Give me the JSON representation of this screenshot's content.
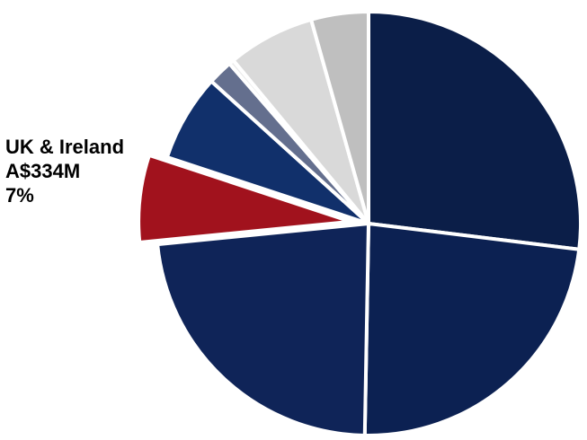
{
  "chart_data": {
    "type": "pie",
    "title": "",
    "start_angle_deg": 0,
    "direction": "clockwise",
    "slices": [
      {
        "value": 28.4,
        "color": "#0b1e48"
      },
      {
        "value": 24.6,
        "color": "#0c2152"
      },
      {
        "value": 24.4,
        "color": "#0f2458"
      },
      {
        "value": 7.0,
        "color": "#a1121d",
        "exploded": true,
        "label": "UK & Ireland",
        "amount": "A$334M",
        "percent": "7%"
      },
      {
        "value": 7.0,
        "color": "#11306b"
      },
      {
        "value": 2.0,
        "color": "#646f8e"
      },
      {
        "value": 0.4,
        "color": "#eaeaea"
      },
      {
        "value": 7.0,
        "color": "#d9d9d9"
      },
      {
        "value": 4.6,
        "color": "#bfbfbf"
      }
    ],
    "callout": {
      "label": "UK & Ireland",
      "amount": "A$334M",
      "percent": "7%"
    }
  }
}
